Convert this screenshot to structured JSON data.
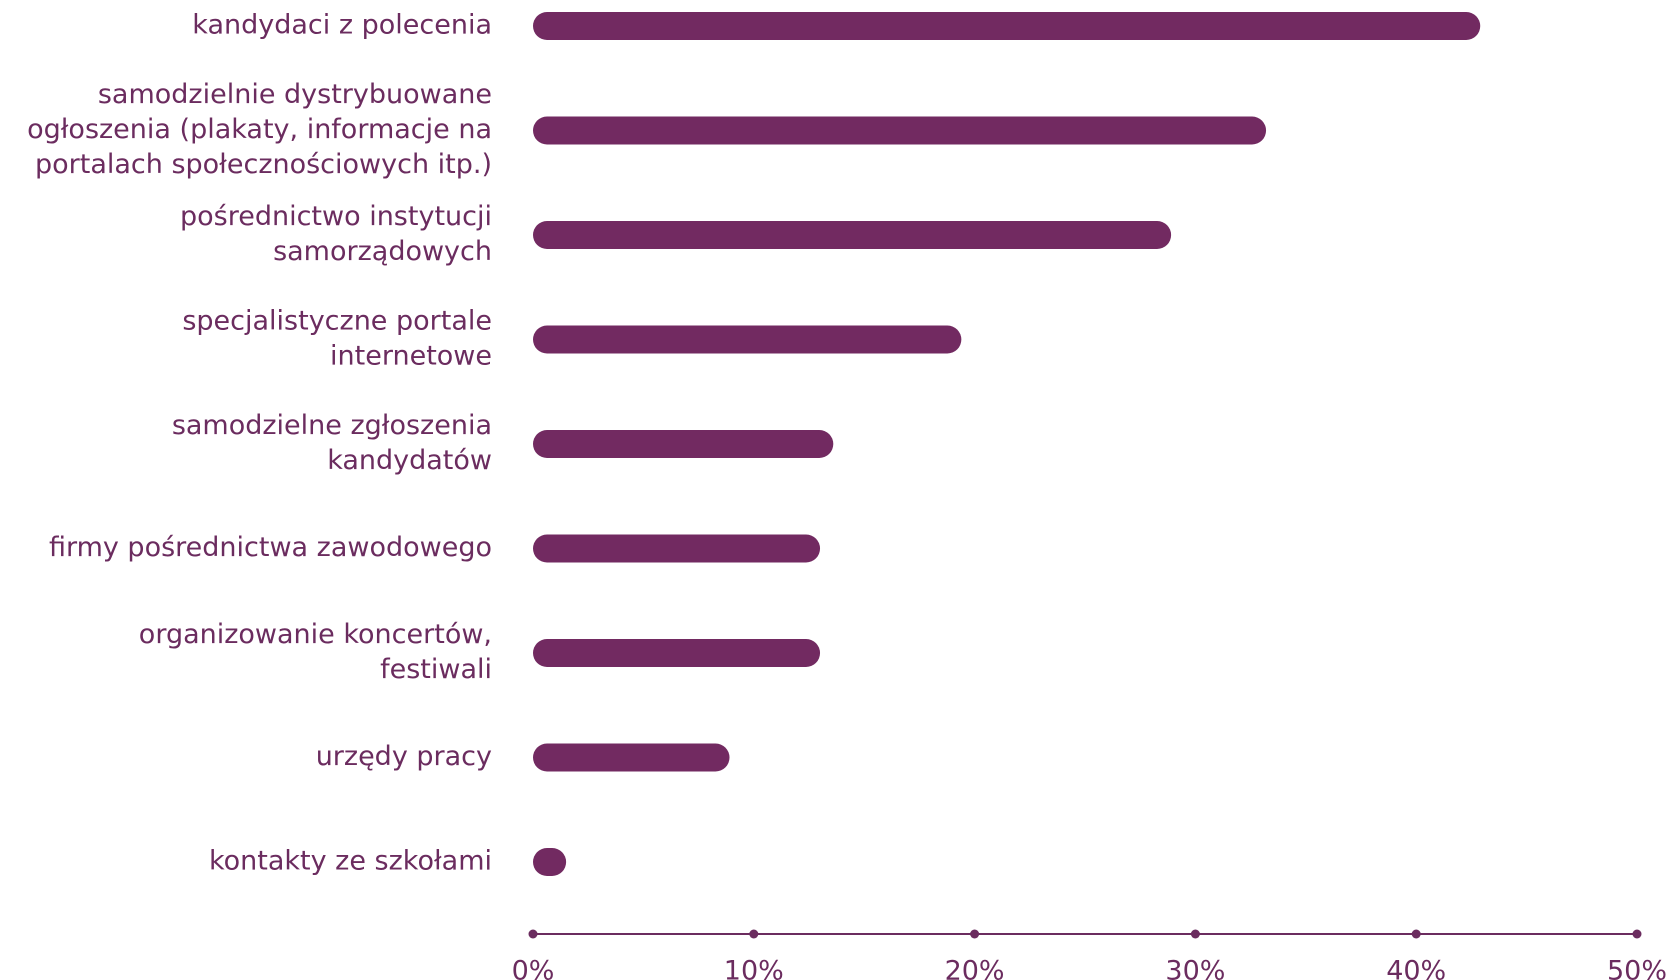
{
  "colors": {
    "bar": "#722a61",
    "axis": "#6b2c5f",
    "text": "#6b2c5f"
  },
  "chart_data": {
    "type": "bar",
    "orientation": "horizontal",
    "title": "",
    "xlabel": "",
    "ylabel": "",
    "grid": false,
    "legend": "none",
    "xlim": [
      0,
      50
    ],
    "ticks": [
      "0%",
      "10%",
      "20%",
      "30%",
      "40%",
      "50%"
    ],
    "tick_values": [
      0,
      10,
      20,
      30,
      40,
      50
    ],
    "categories": [
      [
        "kandydaci z polecenia"
      ],
      [
        "samodzielnie dystrybuowane",
        "ogłoszenia (plakaty, informacje na",
        "portalach społecznościowych itp.)"
      ],
      [
        "pośrednictwo instytucji",
        "samorządowych"
      ],
      [
        "specjalistyczne portale",
        "internetowe"
      ],
      [
        "samodzielne zgłoszenia",
        "kandydatów"
      ],
      [
        "firmy pośrednictwa zawodowego"
      ],
      [
        "organizowanie koncertów,",
        "festiwali"
      ],
      [
        "urzędy pracy"
      ],
      [
        "kontakty ze szkołami"
      ]
    ],
    "values": [
      42.9,
      33.2,
      28.9,
      19.4,
      13.6,
      13.0,
      13.0,
      8.9,
      1.5
    ]
  }
}
